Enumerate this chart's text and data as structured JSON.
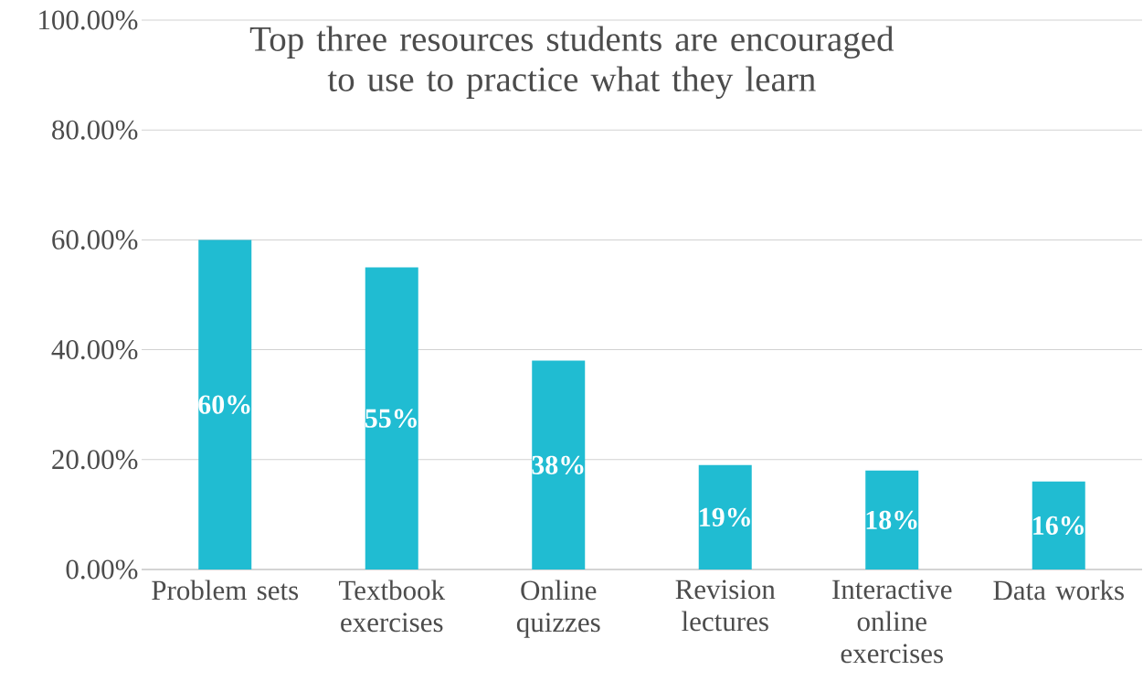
{
  "chart_data": {
    "type": "bar",
    "title": "Top three resources students are encouraged to use to practice what they learn",
    "categories": [
      "Problem sets",
      "Textbook exercises",
      "Online quizzes",
      "Revision lectures",
      "Interactive online exercises",
      "Data works"
    ],
    "values": [
      60,
      55,
      38,
      19,
      18,
      16
    ],
    "value_labels": [
      "60%",
      "55%",
      "38%",
      "19%",
      "18%",
      "16%"
    ],
    "color": "#20bcd2",
    "ylim": [
      0,
      100
    ],
    "yticks": [
      {
        "value": 0,
        "label": "0.00%"
      },
      {
        "value": 20,
        "label": "20.00%"
      },
      {
        "value": 40,
        "label": "40.00%"
      },
      {
        "value": 60,
        "label": "60.00%"
      },
      {
        "value": 80,
        "label": "80.00%"
      },
      {
        "value": 100,
        "label": "100.00%"
      }
    ],
    "grid": "y"
  }
}
